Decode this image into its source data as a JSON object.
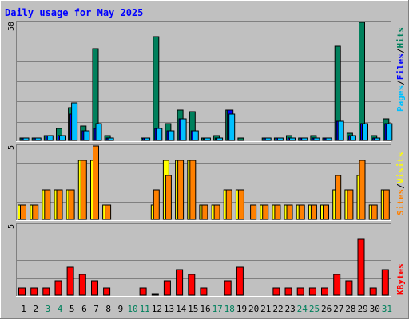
{
  "title": "Daily usage for May 2025",
  "colors": {
    "background": "#c0c0c0",
    "title": "#0000ff",
    "weekday_label": "#000000",
    "weekend_label": "#00805c",
    "hits": "#00805c",
    "files": "#0000ff",
    "pages": "#00c0ff",
    "visits": "#ffff00",
    "sites": "#ff8000",
    "kbytes": "#ff0000"
  },
  "legend": {
    "top": [
      {
        "text": "Pages",
        "color_key": "pages"
      },
      {
        "text": "/",
        "color_key": "weekday_label"
      },
      {
        "text": "Files",
        "color_key": "files"
      },
      {
        "text": "/",
        "color_key": "weekday_label"
      },
      {
        "text": "Hits",
        "color_key": "hits"
      }
    ],
    "middle": [
      {
        "text": "Sites",
        "color_key": "sites"
      },
      {
        "text": "/",
        "color_key": "weekday_label"
      },
      {
        "text": "Visits",
        "color_key": "visits"
      }
    ],
    "bottom": [
      {
        "text": "KBytes",
        "color_key": "kbytes"
      }
    ]
  },
  "chart_data": {
    "type": "bar",
    "title": "Daily usage for May 2025",
    "categories": [
      "1",
      "2",
      "3",
      "4",
      "5",
      "6",
      "7",
      "8",
      "9",
      "10",
      "11",
      "12",
      "13",
      "14",
      "15",
      "16",
      "17",
      "18",
      "19",
      "20",
      "21",
      "22",
      "23",
      "24",
      "25",
      "26",
      "27",
      "28",
      "29",
      "30",
      "31"
    ],
    "weekend_days": [
      "3",
      "4",
      "10",
      "11",
      "17",
      "18",
      "24",
      "25",
      "31"
    ],
    "panels": [
      {
        "id": "hits-files-pages",
        "y_max_label": "50",
        "ylim": [
          0,
          50
        ],
        "series": [
          {
            "name": "Hits",
            "color_key": "hits",
            "values": [
              1,
              1,
              2,
              5,
              14,
              6,
              39,
              2,
              0,
              0,
              1,
              44,
              7,
              13,
              12,
              1,
              2,
              13,
              1,
              0,
              1,
              1,
              2,
              1,
              2,
              1,
              40,
              3,
              50,
              2,
              9
            ]
          },
          {
            "name": "Files",
            "color_key": "files",
            "values": [
              1,
              1,
              2,
              2,
              11,
              4,
              5,
              1,
              0,
              0,
              1,
              5,
              4,
              9,
              4,
              1,
              1,
              13,
              0,
              0,
              1,
              1,
              1,
              1,
              1,
              1,
              8,
              2,
              7,
              1,
              7
            ]
          },
          {
            "name": "Pages",
            "color_key": "pages",
            "values": [
              1,
              1,
              2,
              2,
              16,
              4,
              7,
              1,
              0,
              0,
              1,
              5,
              4,
              9,
              4,
              1,
              1,
              11,
              0,
              0,
              1,
              1,
              1,
              1,
              1,
              1,
              8,
              2,
              7,
              1,
              7
            ]
          }
        ]
      },
      {
        "id": "sites-visits",
        "y_max_label": "5",
        "ylim": [
          0,
          5
        ],
        "series": [
          {
            "name": "Visits",
            "color_key": "visits",
            "values": [
              1,
              1,
              2,
              2,
              2,
              4,
              4,
              1,
              0,
              0,
              0,
              1,
              4,
              4,
              4,
              1,
              1,
              2,
              2,
              0,
              1,
              1,
              1,
              1,
              1,
              1,
              2,
              2,
              3,
              1,
              2
            ]
          },
          {
            "name": "Sites",
            "color_key": "sites",
            "values": [
              1,
              1,
              2,
              2,
              2,
              4,
              5,
              1,
              0,
              0,
              0,
              2,
              3,
              4,
              4,
              1,
              1,
              2,
              2,
              1,
              1,
              1,
              1,
              1,
              1,
              1,
              3,
              2,
              4,
              1,
              2
            ]
          }
        ]
      },
      {
        "id": "kbytes",
        "y_max_label": "5",
        "ylim": [
          0,
          5
        ],
        "series": [
          {
            "name": "KBytes",
            "color_key": "kbytes",
            "values": [
              0.5,
              0.5,
              0.5,
              1,
              2,
              1.5,
              1,
              0.5,
              0,
              0,
              0.5,
              0.05,
              1,
              1.8,
              1.5,
              0.5,
              0,
              1,
              2,
              0,
              0,
              0.5,
              0.5,
              0.5,
              0.5,
              0.5,
              1.5,
              1,
              4,
              0.5,
              1.8
            ]
          }
        ]
      }
    ],
    "grid": true
  }
}
